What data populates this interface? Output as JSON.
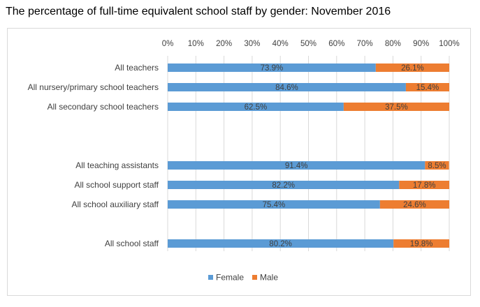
{
  "title": "The percentage of full-time equivalent school staff by gender: November 2016",
  "chart_data": {
    "type": "bar",
    "orientation": "horizontal",
    "stacked": true,
    "title": "The percentage of full-time equivalent school staff by gender: November 2016",
    "x_ticks": [
      "0%",
      "10%",
      "20%",
      "30%",
      "40%",
      "50%",
      "60%",
      "70%",
      "80%",
      "90%",
      "100%"
    ],
    "xlim": [
      0,
      100
    ],
    "grid": true,
    "legend_position": "bottom",
    "categories": [
      "All teachers",
      "All nursery/primary school teachers",
      "All secondary school teachers",
      "All teaching assistants",
      "All school support staff",
      "All school auxiliary staff",
      "All school staff"
    ],
    "series": [
      {
        "name": "Female",
        "color": "#5b9bd5",
        "values": [
          73.9,
          84.6,
          62.5,
          91.4,
          82.2,
          75.4,
          80.2
        ],
        "labels": [
          "73.9%",
          "84.6%",
          "62.5%",
          "91.4%",
          "82.2%",
          "75.4%",
          "80.2%"
        ]
      },
      {
        "name": "Male",
        "color": "#ed7d31",
        "values": [
          26.1,
          15.4,
          37.5,
          8.5,
          17.8,
          24.6,
          19.8
        ],
        "labels": [
          "26.1%",
          "15.4%",
          "37.5%",
          "8.5%",
          "17.8%",
          "24.6%",
          "19.8%"
        ]
      }
    ]
  }
}
